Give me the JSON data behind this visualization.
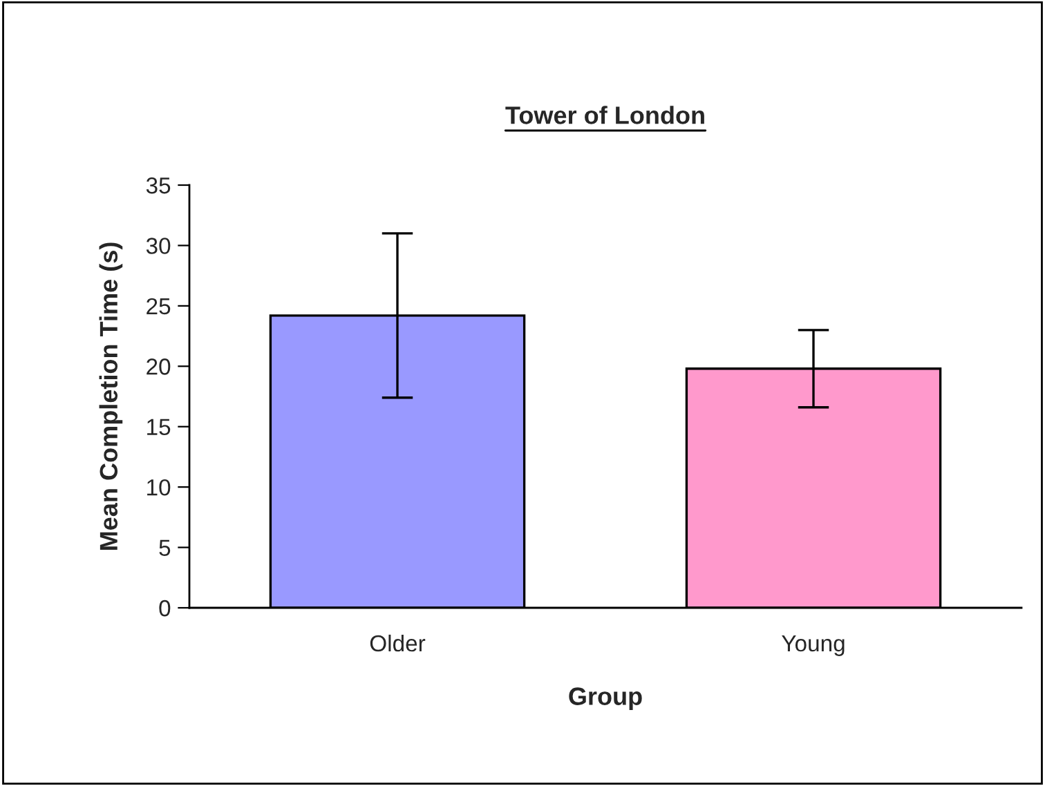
{
  "chart_data": {
    "type": "bar",
    "title": "Tower of London",
    "xlabel": "Group",
    "ylabel": "Mean Completion Time (s)",
    "categories": [
      "Older",
      "Young"
    ],
    "values": [
      24.2,
      19.8
    ],
    "colors": [
      "#9999ff",
      "#ff99cc"
    ],
    "errors": [
      6.8,
      3.2
    ],
    "ylim": [
      0,
      35
    ],
    "yticks": [
      0,
      5,
      10,
      15,
      20,
      25,
      30,
      35
    ],
    "grid": false,
    "legend": false
  }
}
